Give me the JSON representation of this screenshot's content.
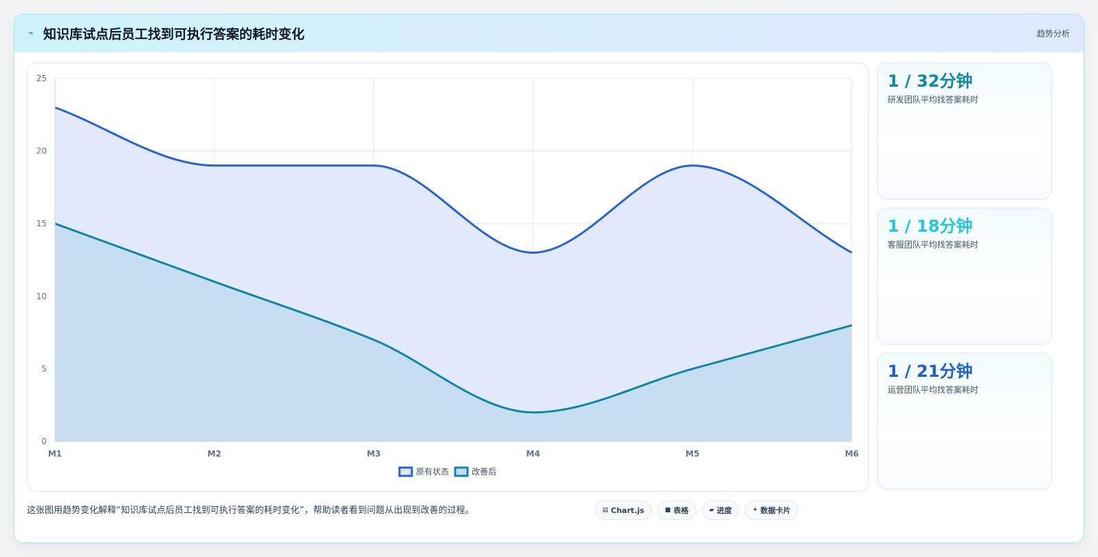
{
  "header": {
    "icon": "trend-icon",
    "title": "知识库试点后员工找到可执行答案的耗时变化",
    "tag": "趋势分析"
  },
  "chart_data": {
    "type": "area",
    "categories": [
      "M1",
      "M2",
      "M3",
      "M4",
      "M5",
      "M6"
    ],
    "series": [
      {
        "name": "原有状态",
        "values": [
          23,
          19,
          19,
          13,
          19,
          13
        ],
        "color": "#2563d9",
        "fill": "#dfe8fb"
      },
      {
        "name": "改善后",
        "values": [
          15,
          11,
          7,
          2,
          5,
          8
        ],
        "color": "#0e86a8",
        "fill": "#c4dcf1"
      }
    ],
    "ylim": [
      0,
      25
    ],
    "yticks": [
      0,
      5,
      10,
      15,
      20,
      25
    ],
    "grid": true,
    "legend": "bottom"
  },
  "stats": [
    {
      "value": "1 / 32分钟",
      "label": "研发团队平均找答案耗时",
      "color": "#0e89a8"
    },
    {
      "value": "1 / 18分钟",
      "label": "客服团队平均找答案耗时",
      "color": "#22c7e0"
    },
    {
      "value": "1 / 21分钟",
      "label": "运营团队平均找答案耗时",
      "color": "#1d5fd6"
    }
  ],
  "footer": {
    "text": "这张图用趋势变化解释“知识库试点后员工找到可执行答案的耗时变化”，帮助读者看到问题从出现到改善的过程。",
    "chips": [
      {
        "icon": "chart-icon",
        "label": "Chart.js"
      },
      {
        "icon": "table-icon",
        "label": "表格"
      },
      {
        "icon": "progress-icon",
        "label": "进度"
      },
      {
        "icon": "sparkle-icon",
        "label": "数据卡片"
      }
    ]
  }
}
